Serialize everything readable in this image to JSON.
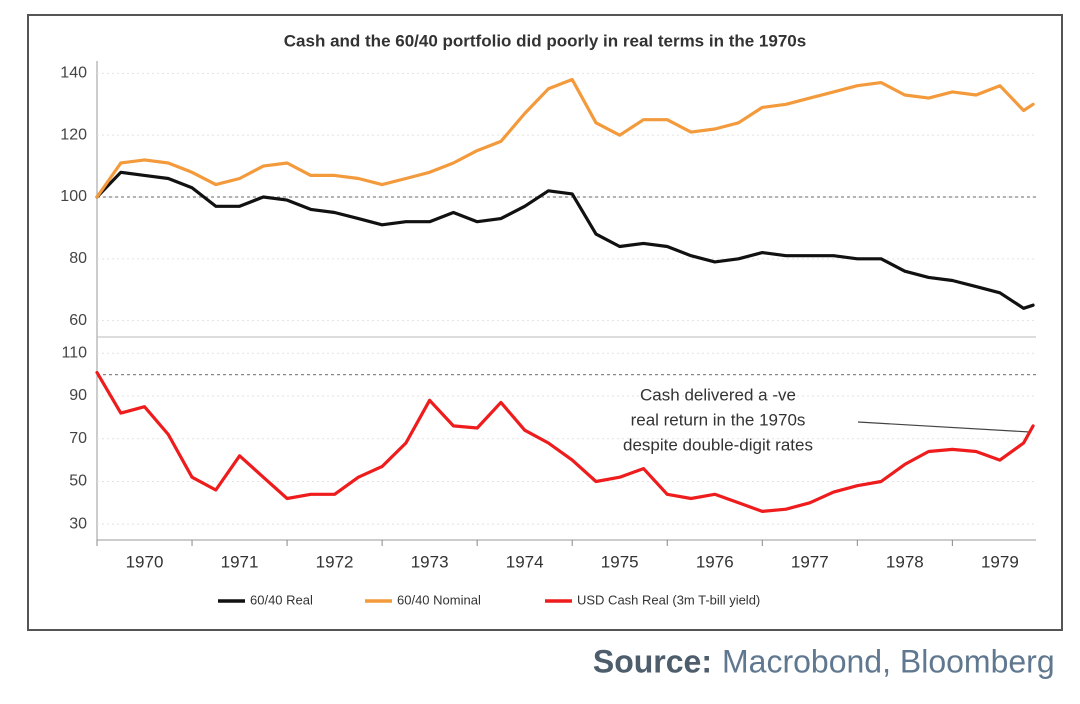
{
  "chart_data": [
    {
      "type": "line",
      "title": "Cash and the 60/40 portfolio did poorly in real terms in the 1970s",
      "x": [
        1970,
        1970.25,
        1970.5,
        1970.75,
        1971,
        1971.25,
        1971.5,
        1971.75,
        1972,
        1972.25,
        1972.5,
        1972.75,
        1973,
        1973.25,
        1973.5,
        1973.75,
        1974,
        1974.25,
        1974.5,
        1974.75,
        1975,
        1975.25,
        1975.5,
        1975.75,
        1976,
        1976.25,
        1976.5,
        1976.75,
        1977,
        1977.25,
        1977.5,
        1977.75,
        1978,
        1978.25,
        1978.5,
        1978.75,
        1979,
        1979.25,
        1979.5,
        1979.75,
        1979.85
      ],
      "xlim": [
        1970,
        1979.88
      ],
      "ylim": [
        56,
        144
      ],
      "yticks": [
        60,
        80,
        100,
        120,
        140
      ],
      "reference_line": 100,
      "grid": true,
      "series": [
        {
          "name": "60/40 Real",
          "color": "#111111",
          "values": [
            100,
            108,
            107,
            106,
            103,
            97,
            97,
            100,
            99,
            96,
            95,
            93,
            91,
            92,
            92,
            95,
            92,
            93,
            97,
            102,
            101,
            88,
            84,
            85,
            84,
            81,
            79,
            80,
            82,
            81,
            81,
            81,
            80,
            80,
            76,
            74,
            73,
            71,
            69,
            64,
            65
          ]
        },
        {
          "name": "60/40 Nominal",
          "color": "#f39a3c",
          "values": [
            100,
            111,
            112,
            111,
            108,
            104,
            106,
            110,
            111,
            107,
            107,
            106,
            104,
            106,
            108,
            111,
            115,
            118,
            127,
            135,
            138,
            124,
            120,
            125,
            125,
            121,
            122,
            124,
            129,
            130,
            132,
            134,
            136,
            137,
            133,
            132,
            134,
            133,
            136,
            128,
            130
          ]
        }
      ]
    },
    {
      "type": "line",
      "x": [
        1970,
        1970.25,
        1970.5,
        1970.75,
        1971,
        1971.25,
        1971.5,
        1971.75,
        1972,
        1972.25,
        1972.5,
        1972.75,
        1973,
        1973.25,
        1973.5,
        1973.75,
        1974,
        1974.25,
        1974.5,
        1974.75,
        1975,
        1975.25,
        1975.5,
        1975.75,
        1976,
        1976.25,
        1976.5,
        1976.75,
        1977,
        1977.25,
        1977.5,
        1977.75,
        1978,
        1978.25,
        1978.5,
        1978.75,
        1979,
        1979.25,
        1979.5,
        1979.75,
        1979.85
      ],
      "xlim": [
        1970,
        1979.88
      ],
      "xticks": [
        1970,
        1971,
        1972,
        1973,
        1974,
        1975,
        1976,
        1977,
        1978,
        1979
      ],
      "ylim": [
        24,
        112
      ],
      "yticks": [
        30,
        50,
        70,
        90,
        110
      ],
      "reference_line": 100,
      "grid": true,
      "annotation": [
        "Cash delivered a -ve",
        "real return in the 1970s",
        "despite double-digit rates"
      ],
      "series": [
        {
          "name": "USD Cash Real (3m T-bill yield)",
          "color": "#ee1c1c",
          "values": [
            101,
            82,
            85,
            72,
            52,
            46,
            62,
            52,
            42,
            44,
            44,
            52,
            57,
            68,
            88,
            76,
            75,
            87,
            74,
            68,
            60,
            50,
            52,
            56,
            44,
            42,
            44,
            40,
            36,
            37,
            40,
            45,
            48,
            50,
            58,
            64,
            65,
            64,
            60,
            68,
            76
          ]
        }
      ]
    }
  ],
  "source": {
    "label": "Source:",
    "text": "Macrobond, Bloomberg"
  }
}
